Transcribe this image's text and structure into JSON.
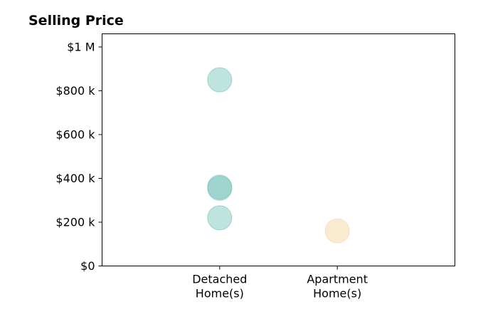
{
  "chart_data": {
    "type": "scatter",
    "title": "Selling Price",
    "xlabel": "",
    "ylabel": "",
    "categories": [
      "Detached\nHome(s)",
      "Apartment\nHome(s)"
    ],
    "xlim": [
      0,
      3
    ],
    "ylim": [
      0,
      1060000
    ],
    "yticks": [
      {
        "value": 0,
        "label": "$0"
      },
      {
        "value": 200000,
        "label": "$200 k"
      },
      {
        "value": 400000,
        "label": "$400 k"
      },
      {
        "value": 600000,
        "label": "$600 k"
      },
      {
        "value": 800000,
        "label": "$800 k"
      },
      {
        "value": 1000000,
        "label": "$1 M"
      }
    ],
    "grid": false,
    "series": [
      {
        "category_index": 1,
        "color": "#7fc7bd",
        "opacity": 0.5,
        "points": [
          {
            "x": 1,
            "y": 850000
          },
          {
            "x": 1,
            "y": 360000
          },
          {
            "x": 1,
            "y": 355000
          },
          {
            "x": 1,
            "y": 220000
          }
        ]
      },
      {
        "category_index": 2,
        "color": "#f5deb0",
        "opacity": 0.6,
        "points": [
          {
            "x": 2,
            "y": 160000
          }
        ]
      }
    ]
  }
}
